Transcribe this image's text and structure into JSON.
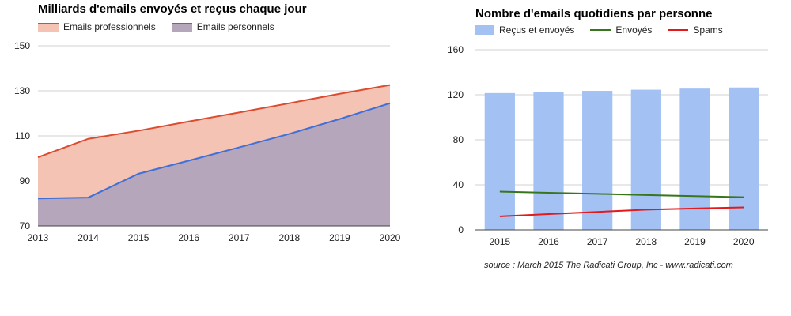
{
  "chart_data": [
    {
      "type": "area",
      "title": "Milliards d'emails envoyés et reçus chaque jour",
      "x": [
        "2013",
        "2014",
        "2015",
        "2016",
        "2017",
        "2018",
        "2019",
        "2020"
      ],
      "ylim": [
        70,
        150
      ],
      "yticks": [
        "70",
        "90",
        "110",
        "130",
        "150"
      ],
      "grid": true,
      "legend_position": "top-left",
      "series": [
        {
          "name": "Emails professionnels",
          "values": [
            100.5,
            108.7,
            112.3,
            116.4,
            120.4,
            124.5,
            128.7,
            132.6
          ],
          "line_color": "#dd4b2e",
          "fill_color": "#f4c3b4"
        },
        {
          "name": "Emails personnels",
          "values": [
            82.2,
            82.6,
            93.2,
            99.0,
            104.9,
            110.9,
            117.5,
            124.5
          ],
          "line_color": "#3f6fd8",
          "fill_color": "#b5a6bb"
        }
      ]
    },
    {
      "type": "bar",
      "title": "Nombre d'emails quotidiens par personne",
      "categories": [
        "2015",
        "2016",
        "2017",
        "2018",
        "2019",
        "2020"
      ],
      "ylim": [
        0,
        160
      ],
      "yticks": [
        "0",
        "40",
        "80",
        "120",
        "160"
      ],
      "grid": true,
      "legend_position": "top-left",
      "series": [
        {
          "name": "Reçus et envoyés",
          "kind": "bar",
          "values": [
            121.5,
            122.5,
            123.5,
            124.5,
            125.5,
            126.5
          ],
          "color": "#a4c1f4"
        },
        {
          "name": "Envoyés",
          "kind": "line",
          "values": [
            34,
            33,
            32,
            31,
            30,
            29
          ],
          "color": "#38761d"
        },
        {
          "name": "Spams",
          "kind": "line",
          "values": [
            12,
            14,
            16,
            18,
            19,
            20
          ],
          "color": "#e31a1c"
        }
      ]
    }
  ],
  "source": "source : March 2015 The Radicati Group, Inc - www.radicati.com"
}
